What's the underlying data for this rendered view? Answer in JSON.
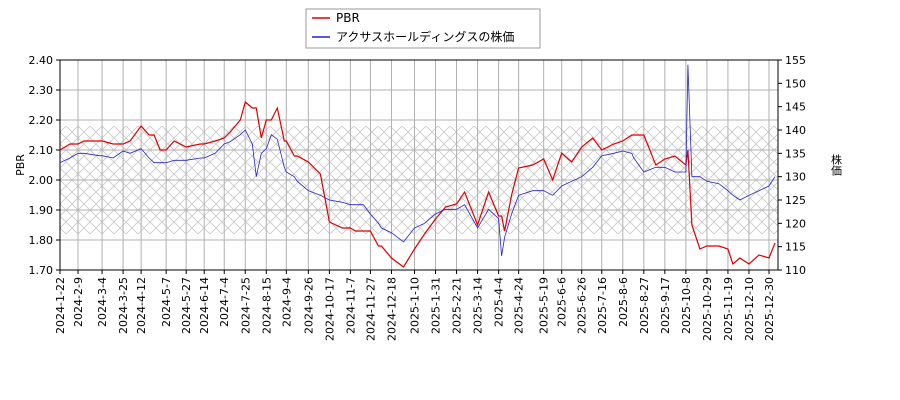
{
  "chart_data": {
    "type": "line",
    "y_label": "PBR",
    "y2_label": "株価",
    "x": [
      "2024-1-22",
      "2024-2-1",
      "2024-2-9",
      "2024-2-15",
      "2024-3-1",
      "2024-3-4",
      "2024-3-15",
      "2024-3-25",
      "2024-4-1",
      "2024-4-12",
      "2024-4-20",
      "2024-4-25",
      "2024-5-1",
      "2024-5-7",
      "2024-5-15",
      "2024-5-27",
      "2024-6-10",
      "2024-6-14",
      "2024-6-25",
      "2024-7-4",
      "2024-7-10",
      "2024-7-20",
      "2024-7-25",
      "2024-8-1",
      "2024-8-5",
      "2024-8-10",
      "2024-8-15",
      "2024-8-20",
      "2024-8-26",
      "2024-9-2",
      "2024-9-4",
      "2024-9-12",
      "2024-9-15",
      "2024-9-26",
      "2024-10-8",
      "2024-10-17",
      "2024-10-30",
      "2024-11-7",
      "2024-11-12",
      "2024-11-20",
      "2024-11-27",
      "2024-12-5",
      "2024-12-8",
      "2024-12-18",
      "2024-12-30",
      "2025-1-10",
      "2025-1-20",
      "2025-1-31",
      "2025-2-10",
      "2025-2-21",
      "2025-3-1",
      "2025-3-14",
      "2025-3-25",
      "2025-4-4",
      "2025-4-7",
      "2025-4-10",
      "2025-4-17",
      "2025-4-24",
      "2025-5-8",
      "2025-5-19",
      "2025-5-28",
      "2025-6-6",
      "2025-6-16",
      "2025-6-26",
      "2025-7-7",
      "2025-7-16",
      "2025-7-28",
      "2025-8-6",
      "2025-8-15",
      "2025-8-17",
      "2025-8-27",
      "2025-9-8",
      "2025-9-17",
      "2025-9-27",
      "2025-10-8",
      "2025-10-10",
      "2025-10-14",
      "2025-10-22",
      "2025-10-29",
      "2025-11-10",
      "2025-11-19",
      "2025-11-24",
      "2025-12-1",
      "2025-12-10",
      "2025-12-20",
      "2025-12-30",
      "2026-1-5"
    ],
    "series": [
      {
        "name": "PBR",
        "color": "#dd0000",
        "values": [
          2.1,
          2.12,
          2.12,
          2.13,
          2.13,
          2.13,
          2.12,
          2.12,
          2.13,
          2.18,
          2.15,
          2.15,
          2.1,
          2.1,
          2.13,
          2.11,
          2.12,
          2.12,
          2.13,
          2.14,
          2.16,
          2.2,
          2.26,
          2.24,
          2.24,
          2.14,
          2.2,
          2.2,
          2.24,
          2.13,
          2.13,
          2.08,
          2.08,
          2.06,
          2.02,
          1.86,
          1.84,
          1.84,
          1.83,
          1.83,
          1.83,
          1.78,
          1.78,
          1.74,
          1.71,
          1.77,
          1.82,
          1.87,
          1.91,
          1.92,
          1.96,
          1.85,
          1.96,
          1.88,
          1.88,
          1.83,
          1.95,
          2.04,
          2.05,
          2.07,
          2.0,
          2.09,
          2.06,
          2.11,
          2.14,
          2.1,
          2.12,
          2.13,
          2.15,
          2.15,
          2.15,
          2.05,
          2.07,
          2.08,
          2.05,
          2.1,
          1.85,
          1.77,
          1.78,
          1.78,
          1.77,
          1.72,
          1.74,
          1.72,
          1.75,
          1.74,
          1.79
        ]
      },
      {
        "name": "アクサスホールディングスの株価",
        "color": "#2222cc",
        "axis": "y2",
        "values": [
          133,
          134,
          135,
          135,
          134.5,
          134.5,
          134,
          135.5,
          135,
          136,
          134,
          133,
          133,
          133,
          133.5,
          133.5,
          134,
          134,
          135,
          137,
          137.5,
          139,
          140,
          137,
          130,
          135,
          136,
          139,
          138,
          132,
          131,
          130,
          129,
          127,
          126,
          125,
          124.5,
          124,
          124,
          124,
          122,
          120,
          119,
          118,
          116,
          119,
          120,
          122,
          123,
          123,
          124,
          119,
          123,
          121,
          113,
          117,
          122,
          126,
          127,
          127,
          126,
          128,
          129,
          130,
          132,
          134.5,
          135,
          135.5,
          135,
          134,
          131,
          132,
          132,
          131,
          131,
          154,
          130,
          130,
          129,
          128.5,
          127,
          126,
          125,
          126,
          127,
          128,
          130
        ]
      }
    ],
    "xlim": [
      "2024-1-22",
      "2026-1-8"
    ],
    "xticks": [
      "2024-1-22",
      "2024-2-9",
      "2024-3-4",
      "2024-3-25",
      "2024-4-12",
      "2024-5-7",
      "2024-5-27",
      "2024-6-14",
      "2024-7-4",
      "2024-7-25",
      "2024-8-15",
      "2024-9-4",
      "2024-9-26",
      "2024-10-17",
      "2024-11-7",
      "2024-11-27",
      "2024-12-18",
      "2025-1-10",
      "2025-1-31",
      "2025-2-21",
      "2025-3-14",
      "2025-4-4",
      "2025-4-24",
      "2025-5-19",
      "2025-6-6",
      "2025-6-26",
      "2025-7-16",
      "2025-8-6",
      "2025-8-27",
      "2025-9-17",
      "2025-10-8",
      "2025-10-29",
      "2025-11-19",
      "2025-12-10",
      "2025-12-30"
    ],
    "ylim": [
      1.7,
      2.4
    ],
    "yticks": [
      {
        "value": 1.7,
        "label": "1.70"
      },
      {
        "value": 1.8,
        "label": "1.80"
      },
      {
        "value": 1.9,
        "label": "1.90"
      },
      {
        "value": 2.0,
        "label": "2.00"
      },
      {
        "value": 2.1,
        "label": "2.10"
      },
      {
        "value": 2.2,
        "label": "2.20"
      },
      {
        "value": 2.3,
        "label": "2.30"
      },
      {
        "value": 2.4,
        "label": "2.40"
      }
    ],
    "y2lim": [
      110,
      155
    ],
    "y2ticks": [
      110,
      115,
      120,
      125,
      130,
      135,
      140,
      145,
      150,
      155
    ],
    "hatch_range": [
      1.82,
      2.18
    ],
    "grid": true,
    "legend": "top"
  }
}
